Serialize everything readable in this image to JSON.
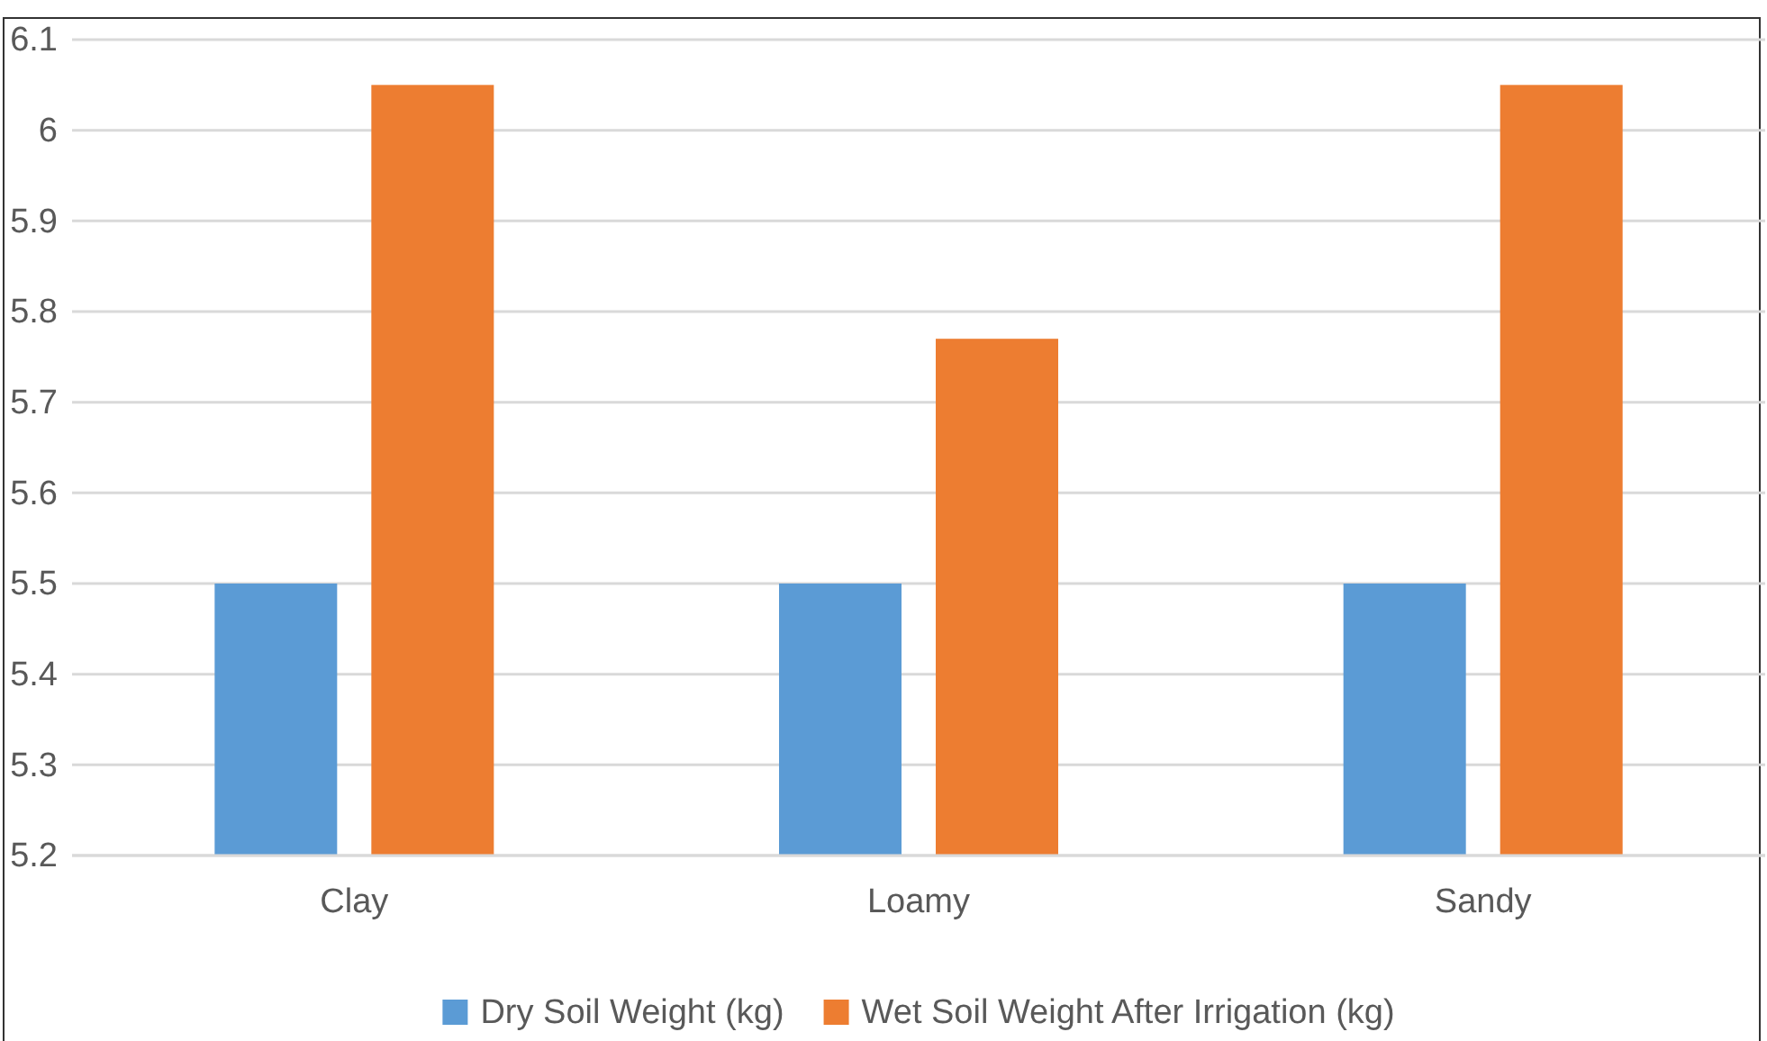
{
  "chart_data": {
    "type": "bar",
    "categories": [
      "Clay",
      "Loamy",
      "Sandy"
    ],
    "series": [
      {
        "name": "Dry Soil Weight (kg)",
        "color": "#5b9bd5",
        "values": [
          5.5,
          5.5,
          5.5
        ]
      },
      {
        "name": "Wet Soil Weight After Irrigation (kg)",
        "color": "#ed7d31",
        "values": [
          6.05,
          5.77,
          6.05
        ]
      }
    ],
    "ylim": [
      5.2,
      6.1
    ],
    "yticks": [
      5.2,
      5.3,
      5.4,
      5.5,
      5.6,
      5.7,
      5.8,
      5.9,
      6,
      6.1
    ],
    "grid": "y",
    "legend": "bottom"
  }
}
